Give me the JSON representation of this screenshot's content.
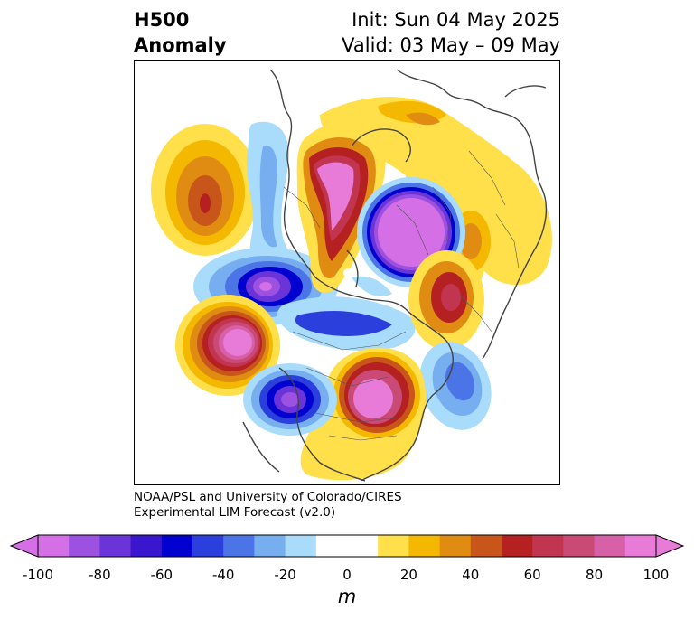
{
  "title": {
    "left_line1": "H500",
    "left_line2": "Anomaly",
    "right_line1": "Init: Sun 04 May 2025",
    "right_line2": "Valid: 03 May – 09 May"
  },
  "credit": {
    "line1": "NOAA/PSL and University of Colorado/CIRES",
    "line2": "Experimental LIM Forecast (v2.0)"
  },
  "colorbar": {
    "unit": "m",
    "ticks": [
      "-100",
      "-80",
      "-60",
      "-40",
      "-20",
      "0",
      "20",
      "40",
      "60",
      "80",
      "100"
    ],
    "colors": [
      "#d56fe6",
      "#9c51e0",
      "#6a34d8",
      "#3a16cf",
      "#0000cf",
      "#2a3fdb",
      "#4b74e6",
      "#76aef0",
      "#a9dbfa",
      "#ffffff",
      "#ffffff",
      "#ffdf4a",
      "#f5b800",
      "#e08c12",
      "#c8561a",
      "#b52020",
      "#c23550",
      "#c94a75",
      "#d860a8",
      "#e87ad8"
    ]
  }
}
